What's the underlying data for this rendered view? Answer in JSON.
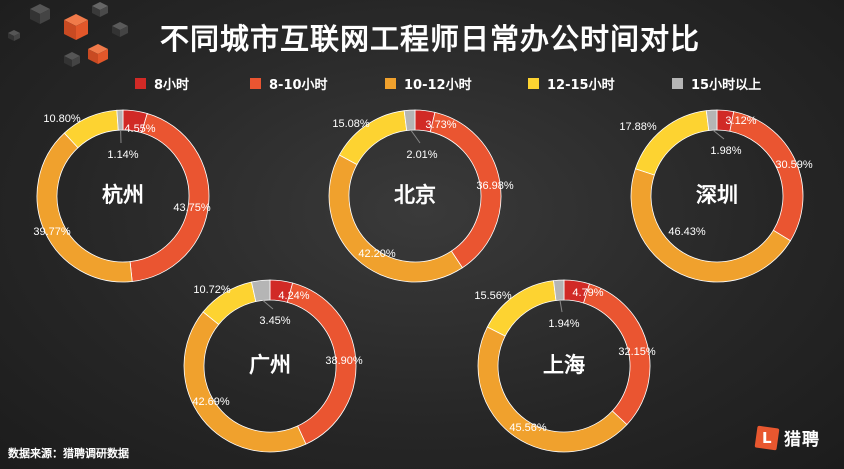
{
  "title": "不同城市互联网工程师日常办公时间对比",
  "legend": [
    {
      "label": "8小时",
      "color": "#d12a26"
    },
    {
      "label": "8-10小时",
      "color": "#ea5531"
    },
    {
      "label": "10-12小时",
      "color": "#f0a12d"
    },
    {
      "label": "12-15小时",
      "color": "#fdd331"
    },
    {
      "label": "15小时以上",
      "color": "#b5b5b5"
    }
  ],
  "source": "数据来源：猎聘调研数据",
  "brand": {
    "logo_letter": "L",
    "name": "猎聘"
  },
  "chart_data": [
    {
      "type": "pie",
      "center_label": "杭州",
      "series": [
        "8小时",
        "8-10小时",
        "10-12小时",
        "12-15小时",
        "15小时以上"
      ],
      "values": [
        4.55,
        43.75,
        39.77,
        10.8,
        1.14
      ],
      "labels": [
        "4.55%",
        "43.75%",
        "39.77%",
        "10.80%",
        "1.14%"
      ]
    },
    {
      "type": "pie",
      "center_label": "北京",
      "series": [
        "8小时",
        "8-10小时",
        "10-12小时",
        "12-15小时",
        "15小时以上"
      ],
      "values": [
        3.73,
        36.98,
        42.2,
        15.08,
        2.01
      ],
      "labels": [
        "3.73%",
        "36.98%",
        "42.20%",
        "15.08%",
        "2.01%"
      ]
    },
    {
      "type": "pie",
      "center_label": "深圳",
      "series": [
        "8小时",
        "8-10小时",
        "10-12小时",
        "12-15小时",
        "15小时以上"
      ],
      "values": [
        3.12,
        30.59,
        46.43,
        17.88,
        1.98
      ],
      "labels": [
        "3.12%",
        "30.59%",
        "46.43%",
        "17.88%",
        "1.98%"
      ]
    },
    {
      "type": "pie",
      "center_label": "广州",
      "series": [
        "8小时",
        "8-10小时",
        "10-12小时",
        "12-15小时",
        "15小时以上"
      ],
      "values": [
        4.24,
        38.9,
        42.69,
        10.72,
        3.45
      ],
      "labels": [
        "4.24%",
        "38.90%",
        "42.69%",
        "10.72%",
        "3.45%"
      ]
    },
    {
      "type": "pie",
      "center_label": "上海",
      "series": [
        "8小时",
        "8-10小时",
        "10-12小时",
        "12-15小时",
        "15小时以上"
      ],
      "values": [
        4.79,
        32.15,
        45.56,
        15.56,
        1.94
      ],
      "labels": [
        "4.79%",
        "32.15%",
        "45.56%",
        "15.56%",
        "1.94%"
      ]
    }
  ]
}
